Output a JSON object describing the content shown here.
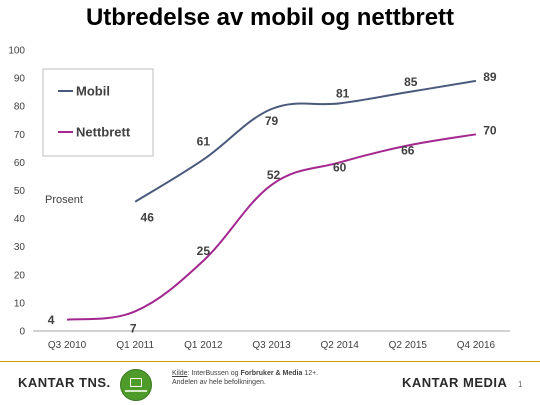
{
  "title": "Utbredelse av mobil og nettbrett",
  "chart_data": {
    "type": "line",
    "title": "Utbredelse av mobil og nettbrett",
    "ylabel": "Prosent",
    "xlabel": "",
    "ylim": [
      0,
      100
    ],
    "yticks": [
      0,
      10,
      20,
      30,
      40,
      50,
      60,
      70,
      80,
      90,
      100
    ],
    "categories": [
      "Q3 2010",
      "Q1 2011",
      "Q1 2012",
      "Q3 2013",
      "Q2 2014",
      "Q2 2015",
      "Q4 2016"
    ],
    "grid": false,
    "legend_position": "top-left",
    "series": [
      {
        "name": "Mobil",
        "color": "#4a5a7c",
        "values": [
          null,
          46,
          61,
          79,
          81,
          85,
          89
        ],
        "labels": [
          "",
          "46",
          "61",
          "79",
          "81",
          "85",
          "89"
        ]
      },
      {
        "name": "Nettbrett",
        "color": "#a3278f",
        "values": [
          4,
          7,
          25,
          52,
          60,
          66,
          70
        ],
        "labels": [
          "4",
          "7",
          "25",
          "52",
          "60",
          "66",
          "70"
        ]
      }
    ]
  },
  "footer": {
    "left_logo": "KANTAR TNS.",
    "source_key": "Kilde",
    "source_line1_pre": ": InterBussen og ",
    "source_line1_bold": "Forbruker & Media",
    "source_line1_post": " 12+.",
    "source_line2": "Andelen av hele befolkningen.",
    "right_logo": "KANTAR MEDIA",
    "page_number": "1"
  }
}
